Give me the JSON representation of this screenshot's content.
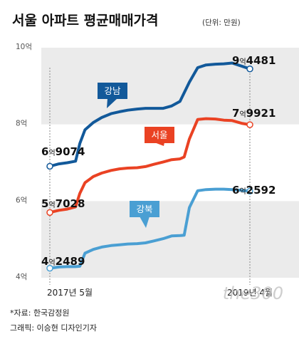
{
  "header": {
    "title": "서울 아파트 평균매매가격",
    "unit": "(단위: 만원)"
  },
  "footer": {
    "source": "*자료: 한국감정원",
    "graphic": "그래픽: 이승현 디자인기자"
  },
  "watermark": "the300",
  "chart_data": {
    "type": "line",
    "ylabel": "",
    "xlabel": "",
    "ylim": [
      4,
      10
    ],
    "y_ticks": [
      {
        "value": 4,
        "label": "4억"
      },
      {
        "value": 6,
        "label": "6억"
      },
      {
        "value": 8,
        "label": "8억"
      },
      {
        "value": 10,
        "label": "10억"
      }
    ],
    "x_range": [
      2017.333,
      2019.25
    ],
    "x_ticks": [
      {
        "value": 2017.333,
        "label": "2017년 5월"
      },
      {
        "value": 2019.25,
        "label": "2019년 4월"
      }
    ],
    "grid_bands": true,
    "series": [
      {
        "name": "강남",
        "color": "#12599a",
        "label_color": "#12599a",
        "start_label": {
          "big": "6",
          "small": "억",
          "rest": "9074"
        },
        "end_label": {
          "big": "9",
          "small": "억",
          "rest": "4481"
        },
        "points": [
          [
            2017.333,
            6.9074
          ],
          [
            2017.42,
            6.97
          ],
          [
            2017.5,
            7.0
          ],
          [
            2017.58,
            7.04
          ],
          [
            2017.62,
            7.5
          ],
          [
            2017.67,
            7.86
          ],
          [
            2017.75,
            8.05
          ],
          [
            2017.83,
            8.18
          ],
          [
            2017.92,
            8.28
          ],
          [
            2018.0,
            8.33
          ],
          [
            2018.08,
            8.37
          ],
          [
            2018.17,
            8.4
          ],
          [
            2018.25,
            8.42
          ],
          [
            2018.33,
            8.42
          ],
          [
            2018.42,
            8.42
          ],
          [
            2018.5,
            8.48
          ],
          [
            2018.58,
            8.6
          ],
          [
            2018.67,
            9.1
          ],
          [
            2018.75,
            9.48
          ],
          [
            2018.83,
            9.55
          ],
          [
            2018.92,
            9.57
          ],
          [
            2019.0,
            9.58
          ],
          [
            2019.08,
            9.6
          ],
          [
            2019.17,
            9.52
          ],
          [
            2019.25,
            9.4481
          ]
        ]
      },
      {
        "name": "서울",
        "color": "#ea4223",
        "label_color": "#ea4223",
        "start_label": {
          "big": "5",
          "small": "억",
          "rest": "7028"
        },
        "end_label": {
          "big": "7",
          "small": "억",
          "rest": "9921"
        },
        "points": [
          [
            2017.333,
            5.7028
          ],
          [
            2017.42,
            5.76
          ],
          [
            2017.5,
            5.79
          ],
          [
            2017.58,
            5.85
          ],
          [
            2017.62,
            6.2
          ],
          [
            2017.67,
            6.48
          ],
          [
            2017.75,
            6.64
          ],
          [
            2017.83,
            6.73
          ],
          [
            2017.92,
            6.8
          ],
          [
            2018.0,
            6.84
          ],
          [
            2018.08,
            6.86
          ],
          [
            2018.17,
            6.87
          ],
          [
            2018.25,
            6.9
          ],
          [
            2018.33,
            6.96
          ],
          [
            2018.42,
            7.02
          ],
          [
            2018.5,
            7.08
          ],
          [
            2018.58,
            7.1
          ],
          [
            2018.62,
            7.15
          ],
          [
            2018.67,
            7.62
          ],
          [
            2018.75,
            8.13
          ],
          [
            2018.83,
            8.15
          ],
          [
            2018.92,
            8.14
          ],
          [
            2019.0,
            8.11
          ],
          [
            2019.08,
            8.1
          ],
          [
            2019.17,
            8.03
          ],
          [
            2019.25,
            7.9921
          ]
        ]
      },
      {
        "name": "강북",
        "color": "#4a9fd3",
        "label_color": "#4a9fd3",
        "start_label": {
          "big": "4",
          "small": "억",
          "rest": "2489"
        },
        "end_label": {
          "big": "6",
          "small": "억",
          "rest": "2592"
        },
        "points": [
          [
            2017.333,
            4.2489
          ],
          [
            2017.42,
            4.28
          ],
          [
            2017.5,
            4.29
          ],
          [
            2017.58,
            4.29
          ],
          [
            2017.62,
            4.3
          ],
          [
            2017.67,
            4.64
          ],
          [
            2017.75,
            4.74
          ],
          [
            2017.83,
            4.8
          ],
          [
            2017.92,
            4.84
          ],
          [
            2018.0,
            4.86
          ],
          [
            2018.08,
            4.88
          ],
          [
            2018.17,
            4.89
          ],
          [
            2018.25,
            4.91
          ],
          [
            2018.33,
            4.96
          ],
          [
            2018.42,
            5.02
          ],
          [
            2018.5,
            5.09
          ],
          [
            2018.58,
            5.1
          ],
          [
            2018.62,
            5.11
          ],
          [
            2018.67,
            5.83
          ],
          [
            2018.75,
            6.27
          ],
          [
            2018.83,
            6.3
          ],
          [
            2018.92,
            6.31
          ],
          [
            2019.0,
            6.31
          ],
          [
            2019.08,
            6.3
          ],
          [
            2019.17,
            6.28
          ],
          [
            2019.25,
            6.2592
          ]
        ]
      }
    ]
  }
}
